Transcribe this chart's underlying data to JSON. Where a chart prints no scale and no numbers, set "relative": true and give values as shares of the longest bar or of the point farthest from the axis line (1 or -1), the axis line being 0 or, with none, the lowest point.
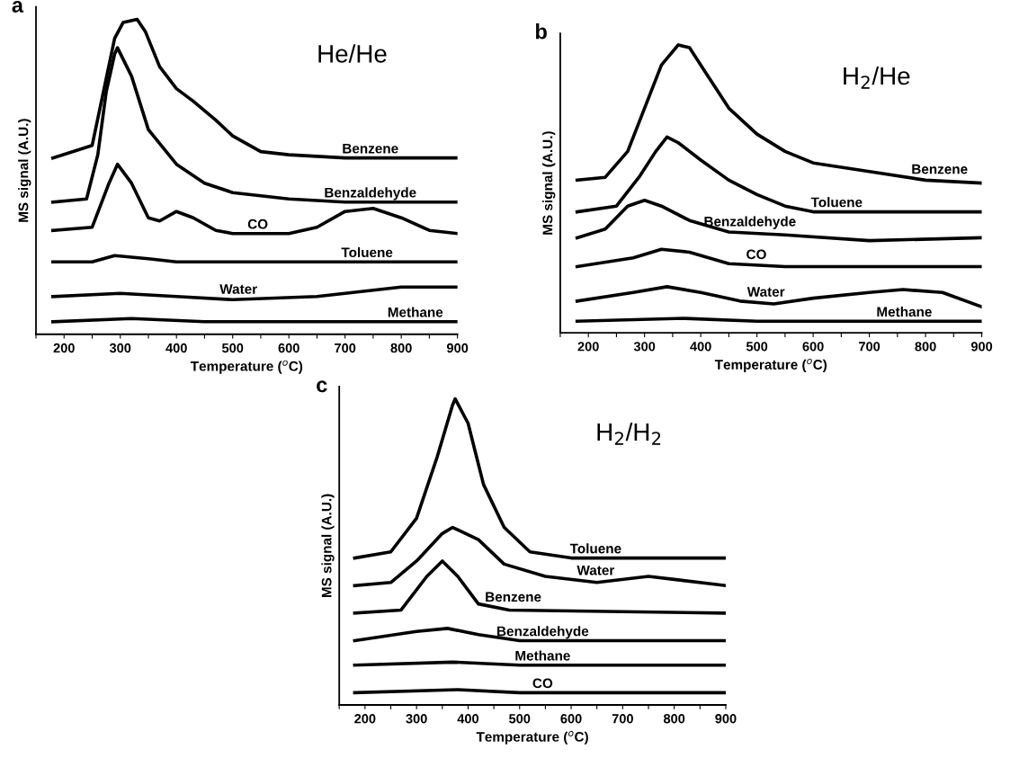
{
  "chart_data": [
    {
      "type": "line",
      "title": "He/He",
      "xlabel": "Temperature ($^{o}$C)",
      "ylabel": "MS signal (A.U.)",
      "annotations": [
        "a"
      ],
      "relative": true,
      "legend": false,
      "grid": false,
      "marker": "none",
      "line_style": "solid",
      "tick_labels": "x",
      "xlim": [
        150,
        900
      ],
      "xticks": [
        {
          "value": 150,
          "label": null
        },
        200,
        {
          "value": 250,
          "label": null
        },
        300,
        {
          "value": 350,
          "label": null
        },
        400,
        {
          "value": 450,
          "label": null
        },
        500,
        {
          "value": 550,
          "label": null
        },
        600,
        {
          "value": 650,
          "label": null
        },
        700,
        {
          "value": 750,
          "label": null
        },
        800,
        {
          "value": 850,
          "label": null
        },
        900
      ],
      "series": [
        {
          "name": "Benzene",
          "color": "#000000",
          "x": [
            180,
            250,
            270,
            290,
            305,
            330,
            345,
            370,
            400,
            430,
            470,
            500,
            550,
            600,
            700,
            800,
            900
          ],
          "values": [
            0.56,
            0.6,
            0.77,
            0.94,
            0.99,
            1.0,
            0.96,
            0.85,
            0.78,
            0.74,
            0.68,
            0.63,
            0.58,
            0.57,
            0.56,
            0.56,
            0.56
          ]
        },
        {
          "name": "Benzaldehyde",
          "color": "#000000",
          "x": [
            180,
            240,
            260,
            275,
            290,
            295,
            320,
            350,
            400,
            450,
            500,
            600,
            700,
            900
          ],
          "values": [
            0.42,
            0.43,
            0.57,
            0.77,
            0.89,
            0.91,
            0.82,
            0.65,
            0.54,
            0.48,
            0.45,
            0.43,
            0.42,
            0.42
          ]
        },
        {
          "name": "CO",
          "color": "#000000",
          "x": [
            180,
            250,
            280,
            295,
            320,
            350,
            370,
            400,
            430,
            470,
            500,
            600,
            650,
            700,
            750,
            800,
            850,
            900
          ],
          "values": [
            0.33,
            0.34,
            0.48,
            0.54,
            0.48,
            0.37,
            0.36,
            0.39,
            0.37,
            0.33,
            0.32,
            0.32,
            0.34,
            0.39,
            0.4,
            0.37,
            0.33,
            0.32
          ]
        },
        {
          "name": "Toluene",
          "color": "#000000",
          "x": [
            180,
            250,
            290,
            350,
            400,
            900
          ],
          "values": [
            0.23,
            0.23,
            0.25,
            0.24,
            0.23,
            0.23
          ]
        },
        {
          "name": "Water",
          "color": "#000000",
          "x": [
            180,
            300,
            400,
            500,
            650,
            800,
            900
          ],
          "values": [
            0.12,
            0.13,
            0.12,
            0.11,
            0.12,
            0.15,
            0.15
          ]
        },
        {
          "name": "Methane",
          "color": "#000000",
          "x": [
            180,
            320,
            450,
            900
          ],
          "values": [
            0.04,
            0.05,
            0.04,
            0.04
          ]
        }
      ]
    },
    {
      "type": "line",
      "title": "H$_{2}$/He",
      "xlabel": "Temperature ($^{o}$C)",
      "ylabel": "MS signal (A.U.)",
      "annotations": [
        "b"
      ],
      "relative": true,
      "legend": false,
      "grid": false,
      "marker": "none",
      "line_style": "solid",
      "tick_labels": "x",
      "xlim": [
        150,
        900
      ],
      "xticks": [
        {
          "value": 150,
          "label": null
        },
        200,
        {
          "value": 250,
          "label": null
        },
        300,
        {
          "value": 350,
          "label": null
        },
        400,
        {
          "value": 450,
          "label": null
        },
        500,
        {
          "value": 550,
          "label": null
        },
        600,
        {
          "value": 650,
          "label": null
        },
        700,
        {
          "value": 750,
          "label": null
        },
        800,
        {
          "value": 850,
          "label": null
        },
        900
      ],
      "series": [
        {
          "name": "Benzene",
          "color": "#000000",
          "x": [
            180,
            230,
            270,
            300,
            330,
            360,
            380,
            410,
            450,
            500,
            550,
            600,
            700,
            800,
            900
          ],
          "values": [
            0.53,
            0.54,
            0.63,
            0.78,
            0.93,
            1.0,
            0.99,
            0.9,
            0.78,
            0.69,
            0.63,
            0.59,
            0.56,
            0.53,
            0.52
          ]
        },
        {
          "name": "Toluene",
          "color": "#000000",
          "x": [
            180,
            250,
            290,
            320,
            340,
            360,
            400,
            450,
            500,
            550,
            600,
            900
          ],
          "values": [
            0.42,
            0.44,
            0.54,
            0.63,
            0.68,
            0.66,
            0.6,
            0.53,
            0.48,
            0.44,
            0.42,
            0.42
          ]
        },
        {
          "name": "Benzaldehyde",
          "color": "#000000",
          "x": [
            180,
            230,
            270,
            300,
            330,
            380,
            450,
            550,
            700,
            900
          ],
          "values": [
            0.33,
            0.36,
            0.44,
            0.46,
            0.44,
            0.39,
            0.35,
            0.34,
            0.32,
            0.33
          ]
        },
        {
          "name": "CO",
          "color": "#000000",
          "x": [
            180,
            280,
            330,
            380,
            450,
            550,
            700,
            900
          ],
          "values": [
            0.23,
            0.26,
            0.29,
            0.28,
            0.24,
            0.23,
            0.23,
            0.23
          ]
        },
        {
          "name": "Water",
          "color": "#000000",
          "x": [
            180,
            280,
            340,
            400,
            470,
            530,
            600,
            700,
            760,
            830,
            900
          ],
          "values": [
            0.11,
            0.14,
            0.16,
            0.14,
            0.11,
            0.1,
            0.12,
            0.14,
            0.15,
            0.14,
            0.09
          ]
        },
        {
          "name": "Methane",
          "color": "#000000",
          "x": [
            180,
            370,
            500,
            900
          ],
          "values": [
            0.04,
            0.05,
            0.04,
            0.04
          ]
        }
      ]
    },
    {
      "type": "line",
      "title": "H$_{2}$/H$_{2}$",
      "xlabel": "Temperature ($^{o}$C)",
      "ylabel": "MS signal (A.U.)",
      "annotations": [
        "c"
      ],
      "relative": true,
      "legend": false,
      "grid": false,
      "marker": "none",
      "line_style": "solid",
      "tick_labels": "x",
      "xlim": [
        150,
        900
      ],
      "xticks": [
        {
          "value": 150,
          "label": null
        },
        200,
        {
          "value": 250,
          "label": null
        },
        300,
        {
          "value": 350,
          "label": null
        },
        400,
        {
          "value": 450,
          "label": null
        },
        500,
        {
          "value": 550,
          "label": null
        },
        600,
        {
          "value": 650,
          "label": null
        },
        700,
        {
          "value": 750,
          "label": null
        },
        800,
        {
          "value": 850,
          "label": null
        },
        900
      ],
      "series": [
        {
          "name": "Toluene",
          "color": "#000000",
          "x": [
            180,
            250,
            300,
            340,
            370,
            375,
            400,
            430,
            470,
            520,
            600,
            900
          ],
          "values": [
            0.48,
            0.5,
            0.61,
            0.81,
            0.98,
            1.0,
            0.92,
            0.72,
            0.58,
            0.5,
            0.48,
            0.48
          ]
        },
        {
          "name": "Water",
          "color": "#000000",
          "x": [
            180,
            250,
            300,
            350,
            370,
            420,
            470,
            550,
            650,
            750,
            800,
            900
          ],
          "values": [
            0.39,
            0.4,
            0.47,
            0.56,
            0.58,
            0.54,
            0.46,
            0.42,
            0.4,
            0.42,
            0.41,
            0.39
          ]
        },
        {
          "name": "Benzene",
          "color": "#000000",
          "x": [
            180,
            270,
            320,
            350,
            380,
            420,
            480,
            900
          ],
          "values": [
            0.3,
            0.31,
            0.42,
            0.47,
            0.42,
            0.33,
            0.31,
            0.3
          ]
        },
        {
          "name": "Benzaldehyde",
          "color": "#000000",
          "x": [
            180,
            300,
            360,
            420,
            500,
            900
          ],
          "values": [
            0.21,
            0.24,
            0.25,
            0.23,
            0.21,
            0.21
          ]
        },
        {
          "name": "Methane",
          "color": "#000000",
          "x": [
            180,
            370,
            500,
            900
          ],
          "values": [
            0.13,
            0.14,
            0.13,
            0.13
          ]
        },
        {
          "name": "CO",
          "color": "#000000",
          "x": [
            180,
            380,
            500,
            900
          ],
          "values": [
            0.04,
            0.05,
            0.04,
            0.04
          ]
        }
      ]
    }
  ]
}
